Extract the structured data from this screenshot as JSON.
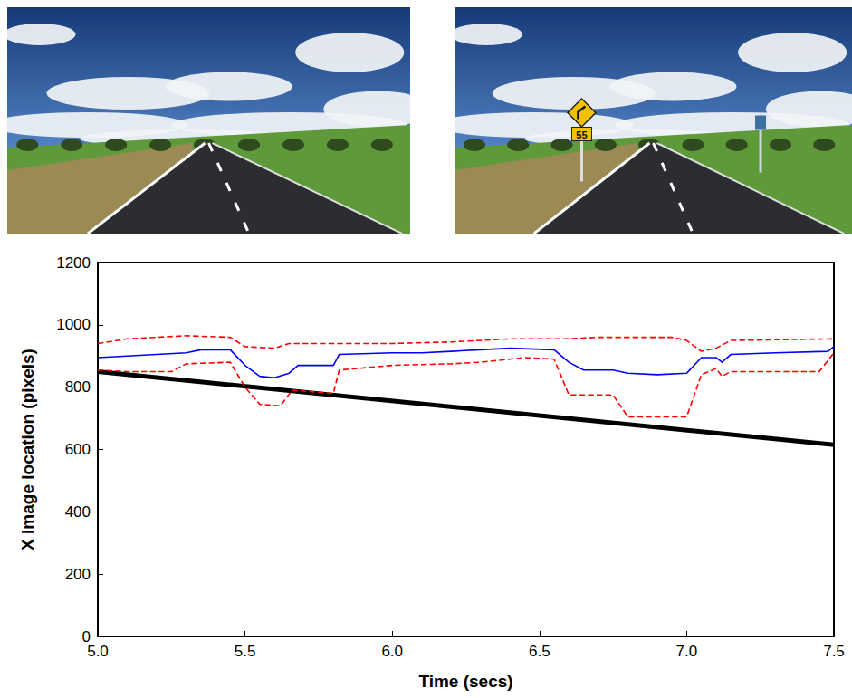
{
  "sign_text": "55",
  "chart_data": {
    "type": "line",
    "x_label": "Time (secs)",
    "y_label": "X image location (pixels)",
    "xlim": [
      5.0,
      7.5
    ],
    "xticks": [
      {
        "value": 5,
        "label": "5.0"
      },
      {
        "value": 5.5,
        "label": "5.5"
      },
      {
        "value": 6,
        "label": "6.0"
      },
      {
        "value": 6.5,
        "label": "6.5"
      },
      {
        "value": 7,
        "label": "7.0"
      },
      {
        "value": 7.5,
        "label": "7.5"
      }
    ],
    "ylim": [
      0,
      1200
    ],
    "yticks": [
      0,
      200,
      400,
      600,
      800,
      1000,
      1200
    ],
    "grid": false,
    "series": [
      {
        "color": "#000000",
        "line_style": "solid",
        "x": [
          5.0,
          7.5
        ],
        "values": [
          850,
          615
        ]
      },
      {
        "color": "#ff0000",
        "line_style": "dashed",
        "x": [
          5.0,
          5.1,
          5.3,
          5.45,
          5.5,
          5.6,
          5.65,
          5.8,
          6.0,
          6.2,
          6.4,
          6.6,
          6.7,
          6.95,
          7.0,
          7.05,
          7.1,
          7.15,
          7.5
        ],
        "values": [
          940,
          955,
          965,
          960,
          930,
          925,
          940,
          940,
          940,
          945,
          955,
          955,
          960,
          960,
          950,
          915,
          925,
          950,
          955
        ]
      },
      {
        "color": "#ff0000",
        "line_style": "dashed",
        "x": [
          5.0,
          5.1,
          5.25,
          5.3,
          5.45,
          5.5,
          5.55,
          5.62,
          5.66,
          5.8,
          5.82,
          6.0,
          6.2,
          6.3,
          6.45,
          6.55,
          6.6,
          6.75,
          6.8,
          6.95,
          7.0,
          7.05,
          7.1,
          7.12,
          7.15,
          7.45,
          7.5
        ],
        "values": [
          855,
          850,
          850,
          875,
          880,
          800,
          745,
          740,
          790,
          780,
          855,
          870,
          875,
          880,
          895,
          890,
          775,
          775,
          705,
          705,
          705,
          840,
          860,
          835,
          850,
          850,
          910
        ]
      },
      {
        "color": "#0000ff",
        "line_style": "solid",
        "x": [
          5.0,
          5.1,
          5.2,
          5.3,
          5.35,
          5.45,
          5.5,
          5.55,
          5.6,
          5.65,
          5.68,
          5.8,
          5.82,
          6.0,
          6.1,
          6.2,
          6.3,
          6.4,
          6.55,
          6.6,
          6.65,
          6.75,
          6.8,
          6.9,
          7.0,
          7.05,
          7.1,
          7.12,
          7.15,
          7.3,
          7.48,
          7.5
        ],
        "values": [
          895,
          900,
          905,
          910,
          920,
          920,
          870,
          835,
          830,
          845,
          870,
          870,
          905,
          910,
          910,
          915,
          920,
          925,
          920,
          880,
          855,
          855,
          845,
          840,
          845,
          895,
          895,
          880,
          905,
          910,
          915,
          930
        ]
      }
    ]
  }
}
